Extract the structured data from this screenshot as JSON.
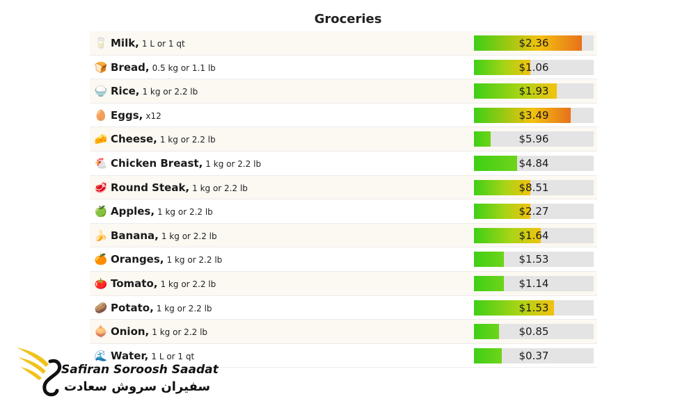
{
  "chart_data": {
    "type": "bar",
    "title": "Groceries",
    "xlabel": "",
    "ylabel": "",
    "xlim": [
      0,
      10
    ],
    "categories": [
      "Milk",
      "Bread",
      "Rice",
      "Eggs",
      "Cheese",
      "Chicken Breast",
      "Round Steak",
      "Apples",
      "Banana",
      "Oranges",
      "Tomato",
      "Potato",
      "Onion",
      "Water"
    ],
    "units": [
      "1 L or 1 qt",
      "0.5 kg or 1.1 lb",
      "1 kg or 2.2 lb",
      "x12",
      "1 kg or 2.2 lb",
      "1 kg or 2.2 lb",
      "1 kg or 2.2 lb",
      "1 kg or 2.2 lb",
      "1 kg or 2.2 lb",
      "1 kg or 2.2 lb",
      "1 kg or 2.2 lb",
      "1 kg or 2.2 lb",
      "1 kg or 2.2 lb",
      "1 L or 1 qt"
    ],
    "icons": [
      "milk-icon",
      "bread-icon",
      "rice-icon",
      "egg-icon",
      "cheese-icon",
      "chicken-icon",
      "steak-icon",
      "apple-icon",
      "banana-icon",
      "orange-icon",
      "tomato-icon",
      "potato-icon",
      "onion-icon",
      "water-icon"
    ],
    "price_labels": [
      "$2.36",
      "$1.06",
      "$1.93",
      "$3.49",
      "$5.96",
      "$4.84",
      "$8.51",
      "$2.27",
      "$1.64",
      "$1.53",
      "$1.14",
      "$1.53",
      "$0.85",
      "$0.37"
    ],
    "bar_levels": [
      0.9,
      0.47,
      0.69,
      0.81,
      0.14,
      0.36,
      0.47,
      0.47,
      0.56,
      0.25,
      0.25,
      0.67,
      0.21,
      0.23
    ],
    "colors": {
      "low": "#3ecf16",
      "mid": "#f2c20f",
      "high": "#e8711b",
      "track": "#e4e4e4"
    }
  },
  "brand": {
    "name": "Safiran Soroosh Saadat",
    "name_fa": "سفیران سروش سعادت"
  }
}
